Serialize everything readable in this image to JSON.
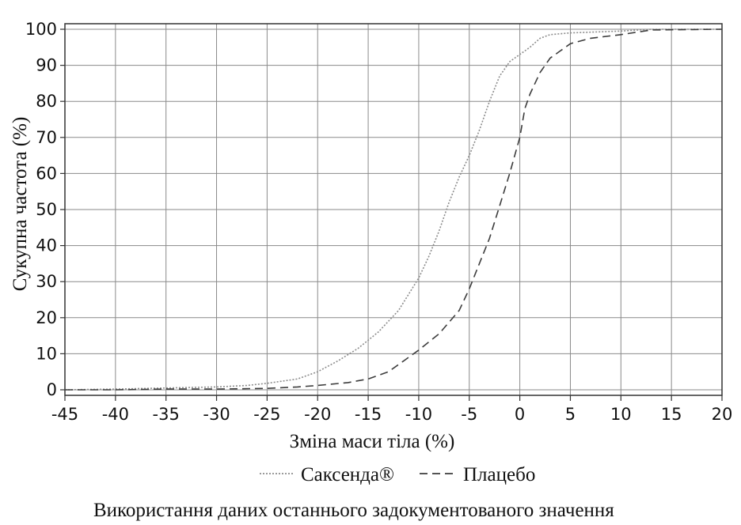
{
  "chart_data": {
    "type": "line",
    "title": "",
    "xlabel": "Зміна маси тіла (%)",
    "ylabel": "Сукупна частота (%)",
    "caption": "Використання даних останнього задокументованого значення",
    "xlim": [
      -45,
      20
    ],
    "ylim": [
      0,
      100
    ],
    "xticks": [
      -45,
      -40,
      -35,
      -30,
      -25,
      -20,
      -15,
      -10,
      -5,
      0,
      5,
      10,
      15,
      20
    ],
    "yticks": [
      0,
      10,
      20,
      30,
      40,
      50,
      60,
      70,
      80,
      90,
      100
    ],
    "grid": true,
    "legend_position": "bottom",
    "series": [
      {
        "name": "Саксенда®",
        "style": "dotted",
        "color": "#8c8c8c",
        "points": [
          [
            -45,
            0
          ],
          [
            -40,
            0.2
          ],
          [
            -35,
            0.5
          ],
          [
            -30,
            0.8
          ],
          [
            -27,
            1.2
          ],
          [
            -25,
            1.8
          ],
          [
            -22,
            3
          ],
          [
            -20,
            5
          ],
          [
            -18,
            8
          ],
          [
            -16,
            11.5
          ],
          [
            -14,
            16
          ],
          [
            -12,
            22
          ],
          [
            -10,
            31
          ],
          [
            -9,
            37
          ],
          [
            -8,
            44
          ],
          [
            -7,
            52
          ],
          [
            -6,
            59
          ],
          [
            -5,
            65
          ],
          [
            -4,
            72
          ],
          [
            -3,
            80
          ],
          [
            -2,
            87
          ],
          [
            -1,
            91
          ],
          [
            0,
            93
          ],
          [
            1,
            95
          ],
          [
            2,
            97.5
          ],
          [
            3,
            98.5
          ],
          [
            5,
            99
          ],
          [
            10,
            99.5
          ],
          [
            13,
            100
          ],
          [
            20,
            100
          ]
        ]
      },
      {
        "name": "Плацебо",
        "style": "dashed",
        "color": "#3c3c3c",
        "points": [
          [
            -45,
            0
          ],
          [
            -40,
            0
          ],
          [
            -35,
            0.2
          ],
          [
            -30,
            0.2
          ],
          [
            -25,
            0.4
          ],
          [
            -22,
            0.8
          ],
          [
            -20,
            1.2
          ],
          [
            -17,
            2
          ],
          [
            -15,
            3
          ],
          [
            -13,
            5
          ],
          [
            -12,
            7
          ],
          [
            -10,
            11
          ],
          [
            -8,
            15.5
          ],
          [
            -6,
            22
          ],
          [
            -5,
            28
          ],
          [
            -4,
            35
          ],
          [
            -3,
            42
          ],
          [
            -2,
            51
          ],
          [
            -1,
            60
          ],
          [
            0,
            70
          ],
          [
            0.5,
            78
          ],
          [
            1,
            82
          ],
          [
            2,
            88
          ],
          [
            3,
            92
          ],
          [
            4,
            94
          ],
          [
            5,
            96
          ],
          [
            7,
            97.5
          ],
          [
            10,
            98.5
          ],
          [
            13,
            99.8
          ],
          [
            20,
            100
          ]
        ]
      }
    ]
  }
}
